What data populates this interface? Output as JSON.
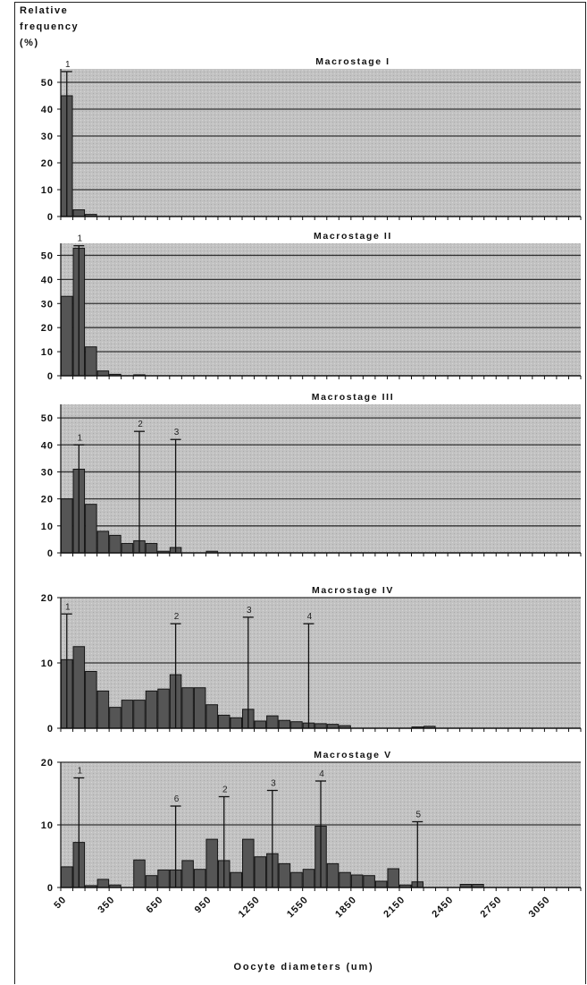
{
  "figure": {
    "y_label_lines": [
      "Relative",
      "frequency",
      "(%)"
    ],
    "x_label": "Oocyte diameters (um)",
    "x_tick_labels": [
      "50",
      "350",
      "650",
      "950",
      "1250",
      "1550",
      "1850",
      "2150",
      "2450",
      "2750",
      "3050"
    ],
    "colors": {
      "plot_bg": "#c2c2c2",
      "bar_fill": "#555555",
      "bar_edge": "#151515",
      "gridline": "#333333"
    }
  },
  "chart_data": [
    {
      "type": "bar",
      "title": "Macrostage I",
      "xlabel": "",
      "ylabel": "Relative frequency (%)",
      "ylim": [
        0,
        55
      ],
      "yticks": [
        0,
        10,
        20,
        30,
        40,
        50
      ],
      "grid": true,
      "categories": [
        "50",
        "125",
        "200",
        "275",
        "350",
        "425",
        "500",
        "575",
        "650",
        "725",
        "800",
        "875",
        "950",
        "1025",
        "1100",
        "1175",
        "1250",
        "1325",
        "1400",
        "1475",
        "1550",
        "1625",
        "1700",
        "1775",
        "1850",
        "1925",
        "2000",
        "2075",
        "2150",
        "2225",
        "2300",
        "2375",
        "2450",
        "2525",
        "2600",
        "2675",
        "2750",
        "2825",
        "2900",
        "2975",
        "3050",
        "3125",
        "3200"
      ],
      "values": [
        45,
        2.5,
        0.8,
        0,
        0,
        0,
        0,
        0,
        0,
        0,
        0,
        0,
        0,
        0,
        0,
        0,
        0,
        0,
        0,
        0,
        0,
        0,
        0,
        0,
        0,
        0,
        0,
        0,
        0,
        0,
        0,
        0,
        0,
        0,
        0,
        0,
        0,
        0,
        0,
        0,
        0,
        0,
        0
      ],
      "peaks": [
        {
          "label": "1",
          "category_index": 0,
          "top": 54
        }
      ]
    },
    {
      "type": "bar",
      "title": "Macrostage II",
      "xlabel": "",
      "ylabel": "Relative frequency (%)",
      "ylim": [
        0,
        55
      ],
      "yticks": [
        0,
        10,
        20,
        30,
        40,
        50
      ],
      "grid": true,
      "categories": [
        "50",
        "125",
        "200",
        "275",
        "350",
        "425",
        "500",
        "575",
        "650",
        "725",
        "800",
        "875",
        "950",
        "1025",
        "1100",
        "1175",
        "1250",
        "1325",
        "1400",
        "1475",
        "1550",
        "1625",
        "1700",
        "1775",
        "1850",
        "1925",
        "2000",
        "2075",
        "2150",
        "2225",
        "2300",
        "2375",
        "2450",
        "2525",
        "2600",
        "2675",
        "2750",
        "2825",
        "2900",
        "2975",
        "3050",
        "3125",
        "3200"
      ],
      "values": [
        33,
        53,
        12,
        2,
        0.6,
        0,
        0.4,
        0,
        0,
        0,
        0,
        0,
        0,
        0,
        0,
        0,
        0,
        0,
        0,
        0,
        0,
        0,
        0,
        0,
        0,
        0,
        0,
        0,
        0,
        0,
        0,
        0,
        0,
        0,
        0,
        0,
        0,
        0,
        0,
        0,
        0,
        0,
        0
      ],
      "peaks": [
        {
          "label": "1",
          "category_index": 1,
          "top": 54
        }
      ]
    },
    {
      "type": "bar",
      "title": "Macrostage III",
      "xlabel": "",
      "ylabel": "Relative frequency (%)",
      "ylim": [
        0,
        55
      ],
      "yticks": [
        0,
        10,
        20,
        30,
        40,
        50
      ],
      "grid": true,
      "categories": [
        "50",
        "125",
        "200",
        "275",
        "350",
        "425",
        "500",
        "575",
        "650",
        "725",
        "800",
        "875",
        "950",
        "1025",
        "1100",
        "1175",
        "1250",
        "1325",
        "1400",
        "1475",
        "1550",
        "1625",
        "1700",
        "1775",
        "1850",
        "1925",
        "2000",
        "2075",
        "2150",
        "2225",
        "2300",
        "2375",
        "2450",
        "2525",
        "2600",
        "2675",
        "2750",
        "2825",
        "2900",
        "2975",
        "3050",
        "3125",
        "3200"
      ],
      "values": [
        20,
        31,
        18,
        8,
        6.5,
        3.5,
        4.5,
        3.5,
        0.6,
        2,
        0,
        0,
        0.6,
        0,
        0,
        0,
        0,
        0,
        0,
        0,
        0,
        0,
        0,
        0,
        0,
        0,
        0,
        0,
        0,
        0,
        0,
        0,
        0,
        0,
        0,
        0,
        0,
        0,
        0,
        0,
        0,
        0,
        0
      ],
      "peaks": [
        {
          "label": "1",
          "category_index": 1,
          "top": 40
        },
        {
          "label": "2",
          "category_index": 6,
          "top": 45
        },
        {
          "label": "3",
          "category_index": 9,
          "top": 42
        }
      ]
    },
    {
      "type": "bar",
      "title": "Macrostage IV",
      "xlabel": "",
      "ylabel": "Relative frequency (%)",
      "ylim": [
        0,
        20
      ],
      "yticks": [
        0,
        10,
        20
      ],
      "grid": true,
      "categories": [
        "50",
        "125",
        "200",
        "275",
        "350",
        "425",
        "500",
        "575",
        "650",
        "725",
        "800",
        "875",
        "950",
        "1025",
        "1100",
        "1175",
        "1250",
        "1325",
        "1400",
        "1475",
        "1550",
        "1625",
        "1700",
        "1775",
        "1850",
        "1925",
        "2000",
        "2075",
        "2150",
        "2225",
        "2300",
        "2375",
        "2450",
        "2525",
        "2600",
        "2675",
        "2750",
        "2825",
        "2900",
        "2975",
        "3050",
        "3125",
        "3200"
      ],
      "values": [
        10.5,
        12.5,
        8.7,
        5.7,
        3.2,
        4.3,
        4.3,
        5.7,
        6,
        8.2,
        6.2,
        6.2,
        3.6,
        2,
        1.6,
        2.9,
        1.1,
        1.9,
        1.2,
        1,
        0.8,
        0.7,
        0.6,
        0.4,
        0,
        0,
        0,
        0,
        0,
        0.2,
        0.3,
        0,
        0,
        0,
        0,
        0,
        0,
        0,
        0,
        0,
        0,
        0,
        0
      ],
      "peaks": [
        {
          "label": "1",
          "category_index": 0,
          "top": 17.5
        },
        {
          "label": "2",
          "category_index": 9,
          "top": 16
        },
        {
          "label": "3",
          "category_index": 15,
          "top": 17
        },
        {
          "label": "4",
          "category_index": 20,
          "top": 16
        }
      ]
    },
    {
      "type": "bar",
      "title": "Macrostage V",
      "xlabel": "Oocyte diameters (um)",
      "ylabel": "Relative frequency (%)",
      "ylim": [
        0,
        20
      ],
      "yticks": [
        0,
        10,
        20
      ],
      "grid": true,
      "categories": [
        "50",
        "125",
        "200",
        "275",
        "350",
        "425",
        "500",
        "575",
        "650",
        "725",
        "800",
        "875",
        "950",
        "1025",
        "1100",
        "1175",
        "1250",
        "1325",
        "1400",
        "1475",
        "1550",
        "1625",
        "1700",
        "1775",
        "1850",
        "1925",
        "2000",
        "2075",
        "2150",
        "2225",
        "2300",
        "2375",
        "2450",
        "2525",
        "2600",
        "2675",
        "2750",
        "2825",
        "2900",
        "2975",
        "3050",
        "3125",
        "3200"
      ],
      "values": [
        3.3,
        7.2,
        0.3,
        1.3,
        0.4,
        0,
        4.4,
        1.9,
        2.8,
        2.8,
        4.3,
        2.9,
        7.7,
        4.3,
        2.4,
        7.7,
        4.9,
        5.4,
        3.8,
        2.4,
        2.9,
        9.8,
        3.8,
        2.4,
        2,
        1.9,
        1,
        3,
        0.4,
        0.9,
        0,
        0,
        0,
        0.5,
        0.5,
        0,
        0,
        0,
        0,
        0,
        0,
        0,
        0
      ],
      "peaks": [
        {
          "label": "1",
          "category_index": 1,
          "top": 17.5
        },
        {
          "label": "6",
          "category_index": 9,
          "top": 13
        },
        {
          "label": "2",
          "category_index": 13,
          "top": 14.5
        },
        {
          "label": "3",
          "category_index": 17,
          "top": 15.5
        },
        {
          "label": "4",
          "category_index": 21,
          "top": 17
        },
        {
          "label": "5",
          "category_index": 29,
          "top": 10.5
        }
      ]
    }
  ]
}
